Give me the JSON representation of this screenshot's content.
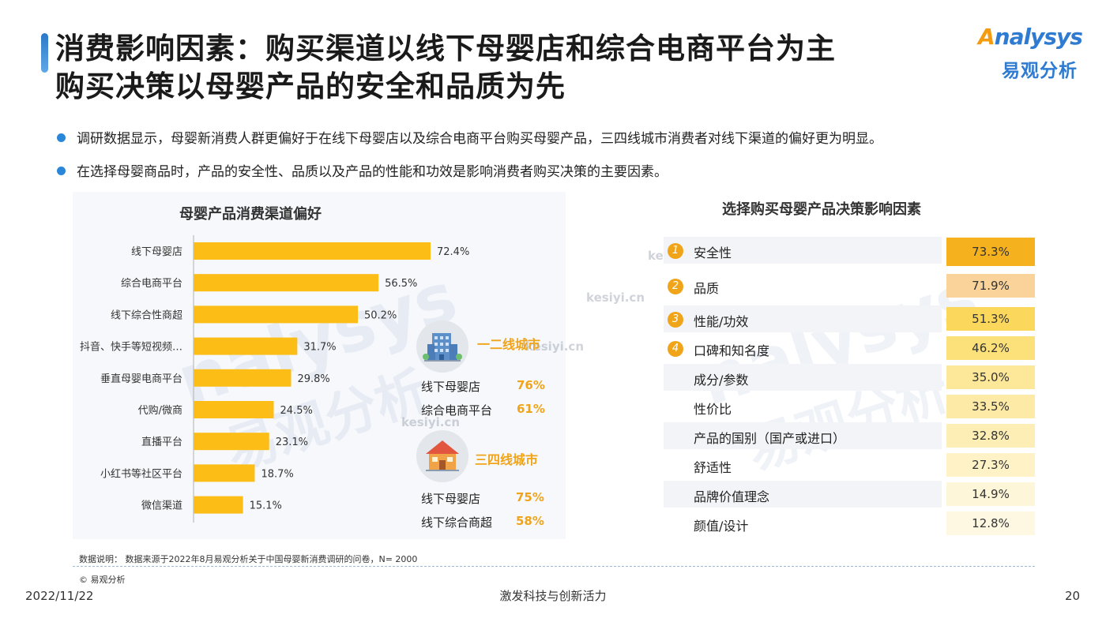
{
  "header": {
    "title_line1": "消费影响因素：购买渠道以线下母婴店和综合电商平台为主",
    "title_line2": "购买决策以母婴产品的安全和品质为先",
    "logo_en": "nalysys",
    "logo_en_initial": "A",
    "logo_cn": "易观分析"
  },
  "bullets": [
    "调研数据显示，母婴新消费人群更偏好于在线下母婴店以及综合电商平台购买母婴产品，三四线城市消费者对线下渠道的偏好更为明显。",
    "在选择母婴商品时，产品的安全性、品质以及产品的性能和功效是影响消费者购买决策的主要因素。"
  ],
  "chart_data": [
    {
      "type": "bar",
      "orientation": "horizontal",
      "title": "母婴产品消费渠道偏好",
      "categories": [
        "线下母婴店",
        "综合电商平台",
        "线下综合性商超",
        "抖音、快手等短视频…",
        "垂直母婴电商平台",
        "代购/微商",
        "直播平台",
        "小红书等社区平台",
        "微信渠道"
      ],
      "values": [
        72.4,
        56.5,
        50.2,
        31.7,
        29.8,
        24.5,
        23.1,
        18.7,
        15.1
      ],
      "value_labels": [
        "72.4%",
        "56.5%",
        "50.2%",
        "31.7%",
        "29.8%",
        "24.5%",
        "23.1%",
        "18.7%",
        "15.1%"
      ],
      "unit": "%",
      "color": "#fbbd16"
    },
    {
      "type": "table",
      "title": "选择购买母婴产品决策影响因素",
      "categories": [
        "安全性",
        "品质",
        "性能/功效",
        "口碑和知名度",
        "成分/参数",
        "性价比",
        "产品的国别（国产或进口）",
        "舒适性",
        "品牌价值理念",
        "颜值/设计"
      ],
      "ranks": [
        "1",
        "2",
        "3",
        "4"
      ],
      "values": [
        73.3,
        71.9,
        51.3,
        46.2,
        35.0,
        33.5,
        32.8,
        27.3,
        14.9,
        12.8
      ],
      "value_labels": [
        "73.3%",
        "71.9%",
        "51.3%",
        "46.2%",
        "35.0%",
        "33.5%",
        "32.8%",
        "27.3%",
        "14.9%",
        "12.8%"
      ],
      "cell_colors": [
        "#f5b21e",
        "#f9d39a",
        "#fbd85c",
        "#fce07a",
        "#fde89a",
        "#fdeaa6",
        "#fdeeb5",
        "#fef2c6",
        "#fef6d8",
        "#fef8e2"
      ]
    }
  ],
  "cities": [
    {
      "name": "一二线城市",
      "icon": "office-building-icon",
      "rows": [
        {
          "label": "线下母婴店",
          "value": "76%"
        },
        {
          "label": "综合电商平台",
          "value": "61%"
        }
      ]
    },
    {
      "name": "三四线城市",
      "icon": "house-icon",
      "rows": [
        {
          "label": "线下母婴店",
          "value": "75%"
        },
        {
          "label": "线下综合商超",
          "value": "58%"
        }
      ]
    }
  ],
  "source": "数据说明：  数据来源于2022年8月易观分析关于中国母婴新消费调研的问卷，N= 2000",
  "copyright": "© 易观分析",
  "footer": {
    "date": "2022/11/22",
    "slogan": "激发科技与创新活力",
    "page": "20"
  },
  "watermarks": [
    "kesiyi.cn",
    "kesiyi.cn",
    "kesiyi.cn",
    "kesiyi.cn",
    "nalysys",
    "易观分析",
    "nalysys",
    "易观分析"
  ]
}
